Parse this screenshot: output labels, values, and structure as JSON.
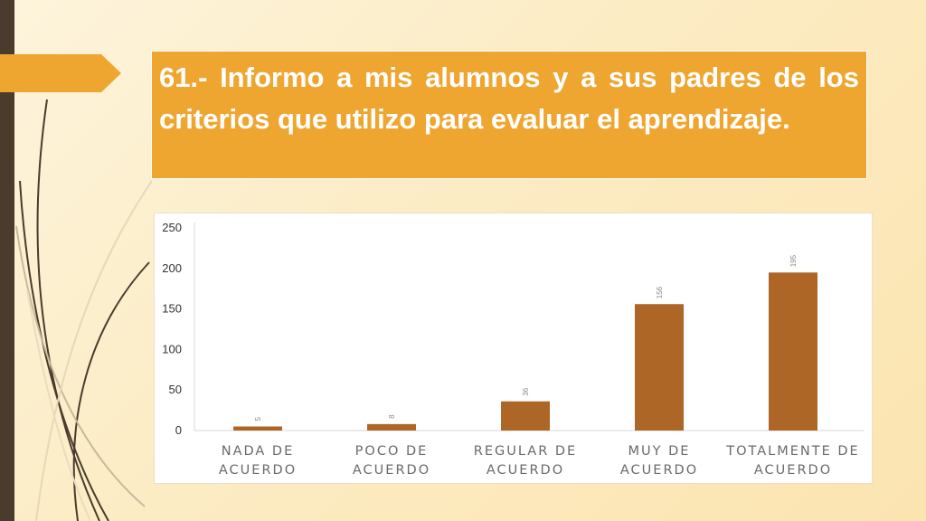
{
  "slide": {
    "title": "61.- Informo a mis alumnos y a sus padres de los criterios que utilizo para evaluar el aprendizaje."
  },
  "colors": {
    "title_bg": "#efa631",
    "bar": "#ad6625",
    "left_bar": "#4a3b2c",
    "arrow_tab": "#efa631"
  },
  "chart_data": {
    "type": "bar",
    "categories": [
      [
        "NADA DE",
        "ACUERDO"
      ],
      [
        "POCO DE",
        "ACUERDO"
      ],
      [
        "REGULAR DE",
        "ACUERDO"
      ],
      [
        "MUY DE",
        "ACUERDO"
      ],
      [
        "TOTALMENTE DE",
        "ACUERDO"
      ]
    ],
    "values": [
      5,
      8,
      36,
      156,
      195
    ],
    "data_labels": [
      "5",
      "8",
      "36",
      "156",
      "195"
    ],
    "yticks": [
      0,
      50,
      100,
      150,
      200,
      250
    ],
    "ylim": [
      0,
      250
    ],
    "grid": false,
    "legend": "none"
  }
}
